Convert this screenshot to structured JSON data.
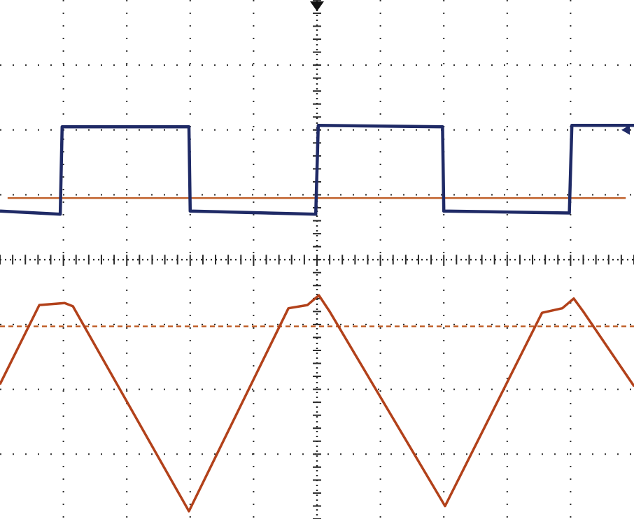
{
  "chart_data": {
    "type": "line",
    "title": "",
    "xlabel": "",
    "ylabel": "",
    "grid": true,
    "grid_divisions": {
      "x": 10,
      "y": 8
    },
    "xlim": [
      0,
      10
    ],
    "ylim": [
      0,
      8
    ],
    "colors": {
      "background": "#ffffff",
      "grid": "#2a2a2a",
      "square_wave": "#1f2a66",
      "triangle_wave": "#b2411a",
      "reference_line": "#c0602a"
    },
    "trigger_marker": {
      "x": 5.0,
      "icon": "trigger-arrow-icon"
    },
    "level_marker": {
      "y": 6.0,
      "icon": "level-arrow-icon"
    },
    "reference_lines": [
      {
        "name_key": "ground-ref",
        "y": 4.95,
        "style": "solid",
        "x": [
          0.12,
          9.87
        ]
      },
      {
        "name_key": "level-ref",
        "y": 2.97,
        "style": "dashed",
        "x": [
          0.0,
          10.0
        ]
      }
    ],
    "series": [
      {
        "key": "square",
        "x": [
          0.0,
          0.95,
          0.98,
          2.98,
          3.0,
          4.98,
          5.02,
          6.98,
          7.0,
          8.98,
          9.02,
          10.0
        ],
        "y": [
          4.75,
          4.7,
          6.05,
          6.05,
          4.75,
          4.7,
          6.07,
          6.05,
          4.75,
          4.72,
          6.07,
          6.07
        ]
      },
      {
        "key": "triangle",
        "x": [
          0.0,
          0.62,
          1.02,
          1.15,
          2.98,
          4.55,
          4.85,
          5.03,
          5.2,
          7.02,
          8.55,
          8.87,
          9.05,
          9.2,
          10.0
        ],
        "y": [
          2.08,
          3.3,
          3.33,
          3.28,
          0.12,
          3.25,
          3.3,
          3.45,
          3.2,
          0.2,
          3.18,
          3.25,
          3.4,
          3.2,
          2.05
        ]
      }
    ]
  }
}
